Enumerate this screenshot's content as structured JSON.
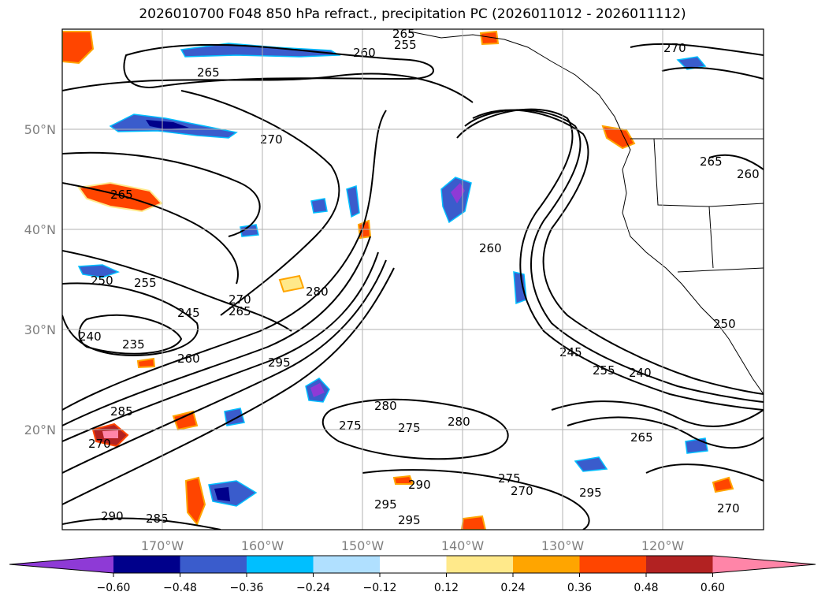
{
  "title": "2026010700 F048 850 hPa refract., precipitation PC (2026011012 - 2026011112)",
  "map": {
    "lon_labels": [
      "170°W",
      "160°W",
      "150°W",
      "140°W",
      "130°W",
      "120°W"
    ],
    "lat_labels": [
      "50°N",
      "40°N",
      "30°N",
      "20°N"
    ],
    "gridlines": true,
    "contour_labels": [
      {
        "text": "265"
      },
      {
        "text": "260"
      },
      {
        "text": "255"
      },
      {
        "text": "270"
      },
      {
        "text": "265"
      },
      {
        "text": "270"
      },
      {
        "text": "265"
      },
      {
        "text": "250"
      },
      {
        "text": "255"
      },
      {
        "text": "245"
      },
      {
        "text": "270"
      },
      {
        "text": "265"
      },
      {
        "text": "240"
      },
      {
        "text": "235"
      },
      {
        "text": "260"
      },
      {
        "text": "280"
      },
      {
        "text": "295"
      },
      {
        "text": "285"
      },
      {
        "text": "280"
      },
      {
        "text": "275"
      },
      {
        "text": "280"
      },
      {
        "text": "275"
      },
      {
        "text": "270"
      },
      {
        "text": "260"
      },
      {
        "text": "245"
      },
      {
        "text": "255"
      },
      {
        "text": "240"
      },
      {
        "text": "265"
      },
      {
        "text": "290"
      },
      {
        "text": "285"
      },
      {
        "text": "295"
      },
      {
        "text": "275"
      },
      {
        "text": "270"
      },
      {
        "text": "295"
      },
      {
        "text": "290"
      },
      {
        "text": "295"
      },
      {
        "text": "265"
      },
      {
        "text": "260"
      },
      {
        "text": "250"
      },
      {
        "text": "270"
      }
    ]
  },
  "colorbar": {
    "colors": [
      "#8e3ad6",
      "#00008b",
      "#3a5ccc",
      "#00bfff",
      "#b0e0ff",
      "#ffffff",
      "#ffe98a",
      "#ffa500",
      "#ff4500",
      "#b22222",
      "#ff85a8"
    ],
    "ticks": [
      "−0.60",
      "−0.48",
      "−0.36",
      "−0.24",
      "−0.12",
      "0.12",
      "0.24",
      "0.36",
      "0.48",
      "0.60"
    ]
  }
}
